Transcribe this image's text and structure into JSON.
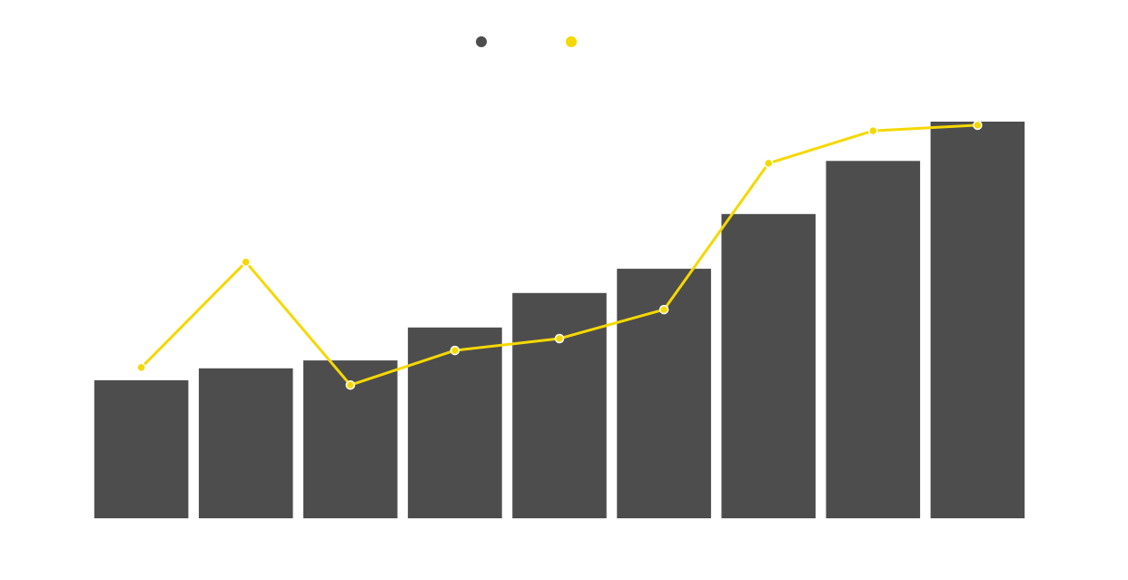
{
  "colors": {
    "background": "#ffffff",
    "bar": "#4d4d4d",
    "line": "#f5d800",
    "marker_stroke": "#ffffff"
  },
  "chart_data": {
    "type": "bar",
    "title": "",
    "xlabel": "",
    "ylabel": "",
    "categories": [
      "",
      "",
      "",
      "",
      "",
      "",
      "",
      "",
      ""
    ],
    "ylim": [
      0,
      100
    ],
    "grid": false,
    "legend": {
      "placement": "top-center",
      "entries": [
        "",
        ""
      ]
    },
    "series": [
      {
        "type": "bar",
        "color": "#4d4d4d",
        "values": [
          34.8,
          37.8,
          39.8,
          48.1,
          56.8,
          62.9,
          76.7,
          90.1,
          100.0
        ]
      },
      {
        "type": "line",
        "color": "#f5d800",
        "values": [
          38.0,
          64.6,
          33.6,
          42.3,
          45.3,
          52.6,
          89.5,
          97.7,
          99.1
        ]
      }
    ]
  }
}
